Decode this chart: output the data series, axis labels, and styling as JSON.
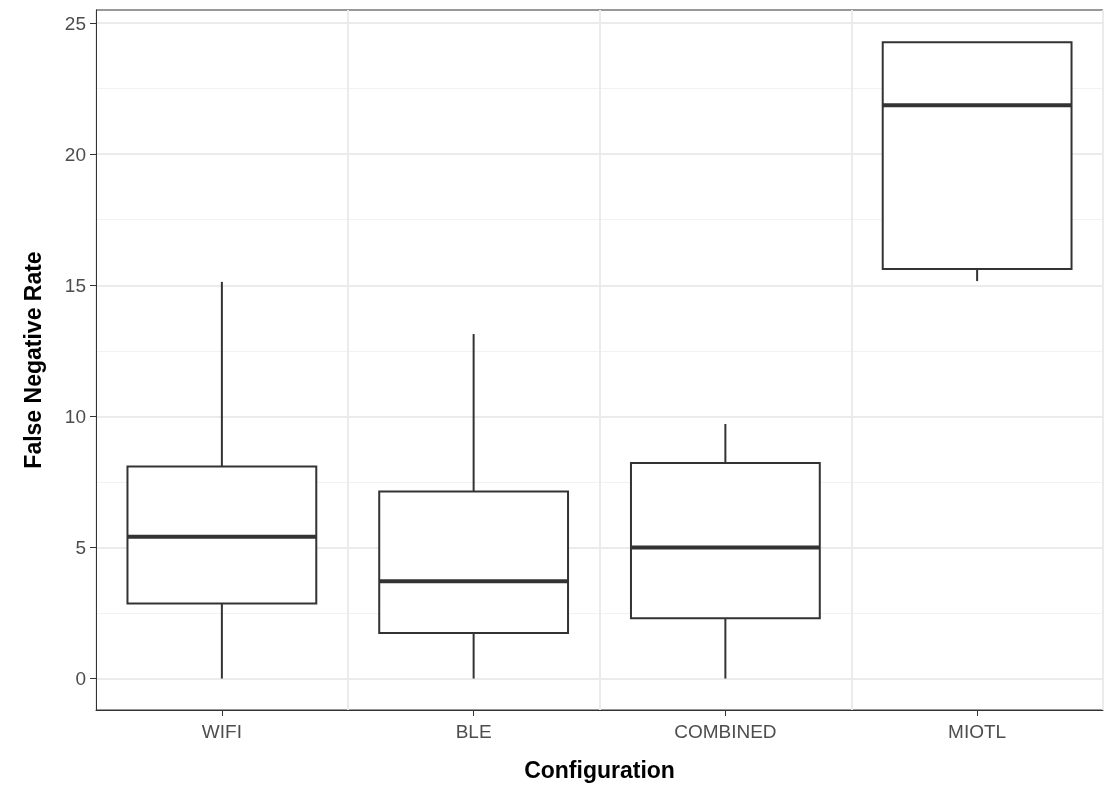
{
  "chart_data": {
    "type": "box",
    "xlabel": "Configuration",
    "ylabel": "False Negative Rate",
    "categories": [
      "WIFI",
      "BLE",
      "COMBINED",
      "MIOTL"
    ],
    "boxes": [
      {
        "low": 0,
        "q1": 2.86,
        "median": 5.41,
        "q3": 8.09,
        "high": 15.13
      },
      {
        "low": 0,
        "q1": 1.74,
        "median": 3.71,
        "q3": 7.13,
        "high": 13.14
      },
      {
        "low": 0,
        "q1": 2.3,
        "median": 5.0,
        "q3": 8.22,
        "high": 9.71
      },
      {
        "low": 15.16,
        "q1": 15.62,
        "median": 21.87,
        "q3": 24.27,
        "high": 24.27
      }
    ],
    "ylim": [
      -1.2,
      25.5
    ],
    "yticks": [
      0,
      5,
      10,
      15,
      20,
      25
    ],
    "grid": true,
    "color": "#333333"
  }
}
